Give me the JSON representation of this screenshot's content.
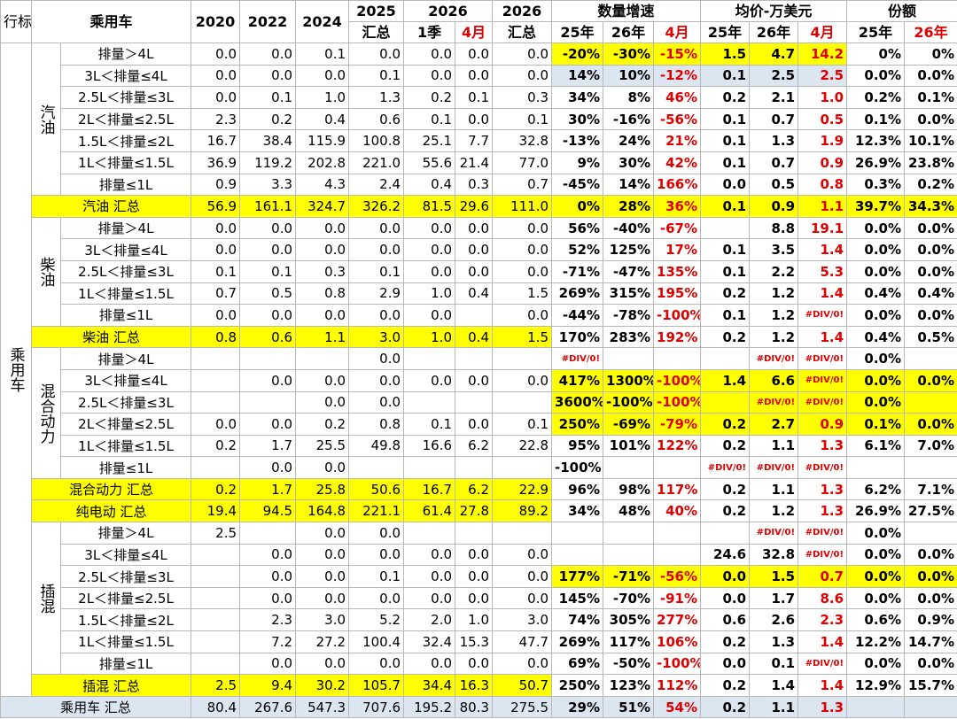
{
  "header": {
    "corner": "行标签",
    "label": "乘用车",
    "years": [
      "2020",
      "2022",
      "2024"
    ],
    "total_2025": [
      "2025",
      "汇总"
    ],
    "year_2026": {
      "title": "2026",
      "sub": [
        "1季",
        "4月"
      ]
    },
    "total_2026": [
      "2026",
      "汇总"
    ],
    "groups": [
      {
        "title": "数量增速",
        "sub": [
          "25年",
          "26年",
          "4月"
        ]
      },
      {
        "title": "均价-万美元",
        "sub": [
          "25年",
          "26年",
          "4月"
        ]
      },
      {
        "title": "份额",
        "sub": [
          "25年",
          "26年"
        ]
      }
    ]
  },
  "body": {
    "side_label": "乘用车",
    "sections": [
      {
        "name": "汽油",
        "rows": [
          {
            "label": "排量＞4L",
            "cells": [
              "0.0",
              "0.0",
              "0.1",
              "0.0",
              "0.0",
              "0.0",
              "0.0",
              "-20%",
              "-30%",
              "-15%",
              "1.5",
              "4.7",
              "14.2",
              "0%",
              "0%"
            ]
          },
          {
            "label": "3L＜排量≤4L",
            "cells": [
              "0.0",
              "0.0",
              "0.0",
              "0.1",
              "0.0",
              "0.0",
              "0.0",
              "14%",
              "10%",
              "-12%",
              "0.1",
              "2.5",
              "2.5",
              "0.0%",
              "0.0%"
            ]
          },
          {
            "label": "2.5L＜排量≤3L",
            "cells": [
              "0.0",
              "0.1",
              "1.0",
              "1.3",
              "0.2",
              "0.1",
              "0.3",
              "34%",
              "8%",
              "46%",
              "0.2",
              "2.1",
              "1.0",
              "0.2%",
              "0.1%"
            ]
          },
          {
            "label": "2L＜排量≤2.5L",
            "cells": [
              "2.3",
              "0.2",
              "0.4",
              "0.6",
              "0.1",
              "0.0",
              "0.1",
              "30%",
              "-16%",
              "-56%",
              "0.1",
              "0.7",
              "0.5",
              "0.1%",
              "0.0%"
            ]
          },
          {
            "label": "1.5L＜排量≤2L",
            "cells": [
              "16.7",
              "38.4",
              "115.9",
              "100.8",
              "25.1",
              "7.7",
              "32.8",
              "-13%",
              "24%",
              "21%",
              "0.1",
              "1.3",
              "1.9",
              "12.3%",
              "10.1%"
            ]
          },
          {
            "label": "1L＜排量≤1.5L",
            "cells": [
              "36.9",
              "119.2",
              "202.8",
              "221.0",
              "55.6",
              "21.4",
              "77.0",
              "9%",
              "30%",
              "42%",
              "0.1",
              "0.7",
              "0.9",
              "26.9%",
              "23.8%"
            ]
          },
          {
            "label": "排量≤1L",
            "cells": [
              "0.9",
              "3.3",
              "4.3",
              "2.4",
              "0.4",
              "0.3",
              "0.7",
              "-45%",
              "14%",
              "166%",
              "0.0",
              "0.5",
              "0.8",
              "0.3%",
              "0.2%"
            ]
          }
        ],
        "total": {
          "label": "汽油 汇总",
          "cells": [
            "56.9",
            "161.1",
            "324.7",
            "326.2",
            "81.5",
            "29.6",
            "111.0",
            "0%",
            "28%",
            "36%",
            "0.1",
            "0.9",
            "1.1",
            "39.7%",
            "34.3%"
          ]
        }
      },
      {
        "name": "柴油",
        "rows": [
          {
            "label": "排量＞4L",
            "cells": [
              "0.0",
              "0.0",
              "0.0",
              "0.0",
              "0.0",
              "0.0",
              "0.0",
              "56%",
              "-40%",
              "-67%",
              null,
              "8.8",
              "19.1",
              "0.0%",
              "0.0%"
            ]
          },
          {
            "label": "3L＜排量≤4L",
            "cells": [
              "0.0",
              "0.0",
              "0.0",
              "0.0",
              "0.0",
              "0.0",
              "0.0",
              "52%",
              "125%",
              "17%",
              "0.1",
              "3.5",
              "1.4",
              "0.0%",
              "0.0%"
            ]
          },
          {
            "label": "2.5L＜排量≤3L",
            "cells": [
              "0.1",
              "0.1",
              "0.3",
              "0.1",
              "0.0",
              "0.0",
              "0.0",
              "-71%",
              "-47%",
              "135%",
              "0.1",
              "2.2",
              "5.3",
              "0.0%",
              "0.0%"
            ]
          },
          {
            "label": "1L＜排量≤1.5L",
            "cells": [
              "0.7",
              "0.5",
              "0.8",
              "2.9",
              "1.0",
              "0.4",
              "1.5",
              "269%",
              "315%",
              "195%",
              "0.2",
              "1.2",
              "1.4",
              "0.4%",
              "0.4%"
            ]
          },
          {
            "label": "排量≤1L",
            "cells": [
              "0.0",
              "0.0",
              "0.0",
              "0.0",
              "0.0",
              null,
              "0.0",
              "-44%",
              "-78%",
              "-100%",
              "0.1",
              "1.2",
              "#DIV/0!",
              "0.0%",
              "0.0%"
            ]
          }
        ],
        "total": {
          "label": "柴油 汇总",
          "cells": [
            "0.8",
            "0.6",
            "1.1",
            "3.0",
            "1.0",
            "0.4",
            "1.5",
            "170%",
            "283%",
            "192%",
            "0.2",
            "1.2",
            "1.4",
            "0.4%",
            "0.5%"
          ]
        }
      },
      {
        "name": "混合动力",
        "rows": [
          {
            "label": "排量＞4L",
            "cells": [
              null,
              null,
              null,
              "0.0",
              null,
              null,
              null,
              "#DIV/0!",
              null,
              null,
              null,
              "#DIV/0!",
              "#DIV/0!",
              "0.0%",
              null
            ]
          },
          {
            "label": "3L＜排量≤4L",
            "cells": [
              null,
              "0.0",
              "0.0",
              "0.0",
              "0.0",
              "0.0",
              "0.0",
              "417%",
              "1300%",
              "-100%",
              "1.4",
              "6.6",
              "#DIV/0!",
              "0.0%",
              "0.0%"
            ]
          },
          {
            "label": "2.5L＜排量≤3L",
            "cells": [
              null,
              null,
              "0.0",
              "0.0",
              null,
              null,
              null,
              "3600%",
              "-100%",
              "-100%",
              null,
              "#DIV/0!",
              "#DIV/0!",
              "0.0%",
              null
            ]
          },
          {
            "label": "2L＜排量≤2.5L",
            "cells": [
              "0.0",
              "0.0",
              "0.2",
              "0.8",
              "0.1",
              "0.0",
              "0.1",
              "250%",
              "-69%",
              "-79%",
              "0.2",
              "2.7",
              "0.9",
              "0.1%",
              "0.0%"
            ]
          },
          {
            "label": "1L＜排量≤1.5L",
            "cells": [
              "0.2",
              "1.7",
              "25.5",
              "49.8",
              "16.6",
              "6.2",
              "22.8",
              "95%",
              "101%",
              "122%",
              "0.2",
              "1.1",
              "1.3",
              "6.1%",
              "7.0%"
            ]
          },
          {
            "label": "排量≤1L",
            "cells": [
              null,
              "0.0",
              "0.0",
              null,
              null,
              null,
              null,
              "-100%",
              null,
              null,
              "#DIV/0!",
              "#DIV/0!",
              "#DIV/0!",
              null,
              null
            ]
          }
        ],
        "total": {
          "label": "混合动力 汇总",
          "cells": [
            "0.2",
            "1.7",
            "25.8",
            "50.6",
            "16.7",
            "6.2",
            "22.9",
            "96%",
            "98%",
            "117%",
            "0.2",
            "1.1",
            "1.3",
            "6.2%",
            "7.1%"
          ]
        }
      },
      {
        "total": {
          "label": "纯电动 汇总",
          "cells": [
            "19.4",
            "94.5",
            "164.8",
            "221.1",
            "61.4",
            "27.8",
            "89.2",
            "34%",
            "48%",
            "40%",
            "0.2",
            "1.2",
            "1.3",
            "26.9%",
            "27.5%"
          ]
        }
      },
      {
        "name": "插混",
        "rows": [
          {
            "label": "排量＞4L",
            "cells": [
              "2.5",
              null,
              "0.0",
              "0.0",
              null,
              null,
              null,
              null,
              null,
              null,
              null,
              "#DIV/0!",
              "#DIV/0!",
              "0.0%",
              null
            ]
          },
          {
            "label": "3L＜排量≤4L",
            "cells": [
              null,
              "0.0",
              "0.0",
              "0.0",
              "0.0",
              "0.0",
              "0.0",
              null,
              null,
              null,
              "24.6",
              "32.8",
              "#DIV/0!",
              "0.0%",
              "0.0%"
            ]
          },
          {
            "label": "2.5L＜排量≤3L",
            "cells": [
              null,
              "0.0",
              "0.0",
              "0.1",
              "0.0",
              "0.0",
              "0.0",
              "177%",
              "-71%",
              "-56%",
              "0.0",
              "1.5",
              "0.7",
              "0.0%",
              "0.0%"
            ]
          },
          {
            "label": "2L＜排量≤2.5L",
            "cells": [
              null,
              "0.0",
              "0.0",
              "0.0",
              "0.0",
              "0.0",
              "0.0",
              "145%",
              "-70%",
              "-91%",
              "0.0",
              "1.7",
              "8.6",
              "0.0%",
              "0.0%"
            ]
          },
          {
            "label": "1.5L＜排量≤2L",
            "cells": [
              null,
              "2.3",
              "3.0",
              "5.2",
              "2.0",
              "1.0",
              "3.0",
              "74%",
              "305%",
              "277%",
              "0.6",
              "2.6",
              "2.3",
              "0.6%",
              "0.9%"
            ]
          },
          {
            "label": "1L＜排量≤1.5L",
            "cells": [
              null,
              "7.2",
              "27.2",
              "100.4",
              "32.4",
              "15.3",
              "47.7",
              "269%",
              "117%",
              "106%",
              "0.2",
              "1.3",
              "1.4",
              "12.2%",
              "14.7%"
            ]
          },
          {
            "label": "排量≤1L",
            "cells": [
              null,
              "0.0",
              "0.0",
              "0.0",
              "0.0",
              "0.0",
              "0.0",
              "69%",
              "-50%",
              "-100%",
              "0.0",
              "0.1",
              "#DIV/0!",
              "0.0%",
              "0.0%"
            ]
          }
        ],
        "total": {
          "label": "插混 汇总",
          "cells": [
            "2.5",
            "9.4",
            "30.2",
            "105.7",
            "34.4",
            "16.3",
            "50.7",
            "250%",
            "123%",
            "112%",
            "0.2",
            "1.4",
            "1.4",
            "12.9%",
            "15.7%"
          ]
        }
      }
    ],
    "grand_total": {
      "label": "乘用车 汇总",
      "cells": [
        "80.4",
        "267.6",
        "547.3",
        "707.6",
        "195.2",
        "80.3",
        "275.5",
        "29%",
        "51%",
        "54%",
        "0.2",
        "1.1",
        "1.3",
        null,
        null
      ]
    }
  }
}
